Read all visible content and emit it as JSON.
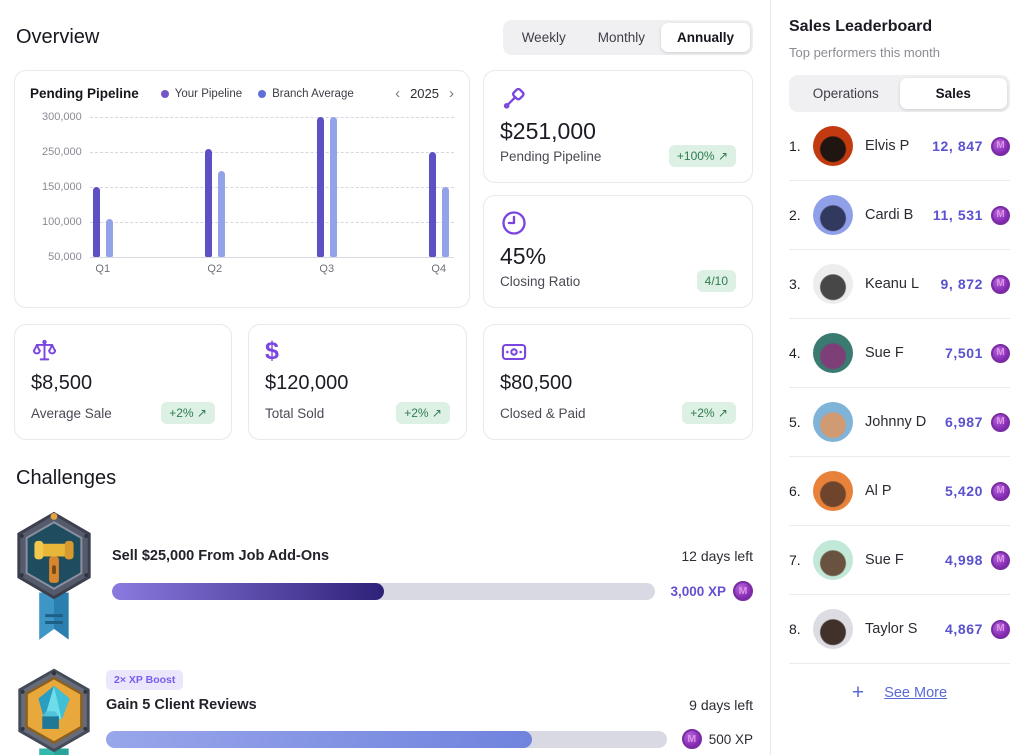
{
  "header": {
    "title": "Overview",
    "tabs": [
      {
        "label": "Weekly"
      },
      {
        "label": "Monthly"
      },
      {
        "label": "Annually"
      }
    ],
    "active_tab": "Annually"
  },
  "chart_card": {
    "title": "Pending Pipeline",
    "legend": [
      {
        "label": "Your Pipeline",
        "color": "#7456c8"
      },
      {
        "label": "Branch Average",
        "color": "#5f6fd8"
      }
    ],
    "year_nav": {
      "year": "2025"
    }
  },
  "chart_data": {
    "type": "bar",
    "title": "Pending Pipeline",
    "categories": [
      "Q1",
      "Q2",
      "Q3",
      "Q4"
    ],
    "series": [
      {
        "name": "Your Pipeline",
        "color": "#5c50c4",
        "values": [
          150000,
          255000,
          300000,
          250000
        ]
      },
      {
        "name": "Branch Average",
        "color": "#93a3e8",
        "values": [
          105000,
          195000,
          300000,
          150000
        ]
      }
    ],
    "y_ticks": [
      50000,
      100000,
      150000,
      250000,
      300000
    ],
    "y_tick_labels": [
      "50,000",
      "100,000",
      "150,000",
      "250,000",
      "300,000"
    ],
    "ylim": [
      50000,
      300000
    ],
    "grid": "horizontal-dashed",
    "legend_position": "top"
  },
  "kpi_cards": [
    {
      "icon": "gavel-icon",
      "value": "$251,000",
      "label": "Pending Pipeline",
      "badge": "+100% ↗"
    },
    {
      "icon": "clock-icon",
      "value": "45%",
      "label": "Closing Ratio",
      "badge": "4/10"
    }
  ],
  "stat_cards": [
    {
      "icon": "scales-icon",
      "value": "$8,500",
      "label": "Average Sale",
      "badge": "+2% ↗"
    },
    {
      "icon": "dollar-icon",
      "dollar_glyph": "$",
      "value": "$120,000",
      "label": "Total Sold",
      "badge": "+2% ↗"
    },
    {
      "icon": "banknote-icon",
      "value": "$80,500",
      "label": "Closed & Paid",
      "badge": "+2% ↗"
    }
  ],
  "challenges": {
    "heading": "Challenges",
    "items": [
      {
        "title": "Sell $25,000 From Job Add-Ons",
        "days_left": "12 days left",
        "xp": "3,000 XP",
        "progress_pct": 50,
        "bar_colors": [
          "#8b7ae0",
          "#2e2178"
        ]
      },
      {
        "boost": "2× XP Boost",
        "title": "Gain 5 Client Reviews",
        "days_left": "9 days left",
        "xp": "500 XP",
        "progress_pct": 76,
        "bar_colors": [
          "#98a6ea",
          "#7083de"
        ]
      }
    ]
  },
  "leaderboard": {
    "title": "Sales Leaderboard",
    "subtitle": "Top performers this month",
    "tabs": [
      {
        "label": "Operations"
      },
      {
        "label": "Sales"
      }
    ],
    "active_tab": "Sales",
    "see_more": "See More",
    "items": [
      {
        "rank": "1.",
        "name": "Elvis P",
        "value": "12, 847",
        "avatar_colors": [
          "#c23a10",
          "#201510"
        ]
      },
      {
        "rank": "2.",
        "name": "Cardi B",
        "value": "11, 531",
        "avatar_colors": [
          "#8f9fe8",
          "#32395e"
        ]
      },
      {
        "rank": "3.",
        "name": "Keanu L",
        "value": "9, 872",
        "avatar_colors": [
          "#ededed",
          "#474747"
        ]
      },
      {
        "rank": "4.",
        "name": "Sue F",
        "value": "7,501",
        "avatar_colors": [
          "#3a7a70",
          "#7e3f78"
        ]
      },
      {
        "rank": "5.",
        "name": "Johnny D",
        "value": "6,987",
        "avatar_colors": [
          "#7fb3d8",
          "#d09a72"
        ]
      },
      {
        "rank": "6.",
        "name": "Al P",
        "value": "5,420",
        "avatar_colors": [
          "#e8823a",
          "#6e452c"
        ]
      },
      {
        "rank": "7.",
        "name": "Sue F",
        "value": "4,998",
        "avatar_colors": [
          "#c2e8d8",
          "#6a5240"
        ]
      },
      {
        "rank": "8.",
        "name": "Taylor S",
        "value": "4,867",
        "avatar_colors": [
          "#dcdce2",
          "#40322a"
        ]
      }
    ]
  },
  "icons": {
    "coin_letter": "M",
    "plus": "+",
    "chevron_left": "‹",
    "chevron_right": "›"
  },
  "colors": {
    "accent_purple": "#7a45e0",
    "number_indigo": "#5a51cf",
    "positive_badge_bg": "#ddf0e4",
    "positive_badge_text": "#2f7d4f",
    "progress_track": "#d9d9e3"
  }
}
